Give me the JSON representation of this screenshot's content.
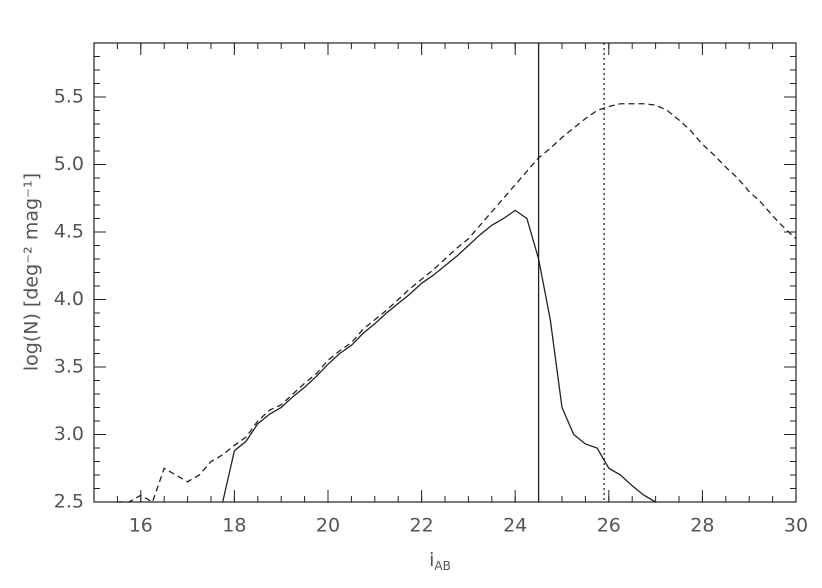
{
  "chart_data": {
    "type": "line",
    "x_label": "i",
    "x_label_subscript": "AB",
    "y_label": "log(N)  [deg⁻² mag⁻¹]",
    "x": [
      15.5,
      15.75,
      16,
      16.25,
      16.5,
      16.75,
      17,
      17.25,
      17.5,
      17.75,
      18,
      18.25,
      18.5,
      18.75,
      19,
      19.25,
      19.5,
      19.75,
      20,
      20.25,
      20.5,
      20.75,
      21,
      21.25,
      21.5,
      21.75,
      22,
      22.25,
      22.5,
      22.75,
      23,
      23.25,
      23.5,
      23.75,
      24,
      24.25,
      24.5,
      24.75,
      25,
      25.25,
      25.5,
      25.75,
      26,
      26.25,
      26.5,
      26.75,
      27,
      27.25,
      27.5,
      27.75,
      28,
      28.25,
      28.5,
      28.75,
      29,
      29.25,
      29.5,
      29.75,
      30
    ],
    "series": [
      {
        "color": "#222",
        "dash": "6,4",
        "values": [
          2.5,
          2.5,
          2.55,
          2.5,
          2.75,
          2.7,
          2.65,
          2.7,
          2.8,
          2.85,
          2.92,
          2.98,
          3.1,
          3.18,
          3.22,
          3.3,
          3.38,
          3.45,
          3.55,
          3.62,
          3.68,
          3.78,
          3.85,
          3.92,
          4.0,
          4.08,
          4.15,
          4.22,
          4.3,
          4.38,
          4.45,
          4.55,
          4.65,
          4.75,
          4.85,
          4.95,
          5.05,
          5.12,
          5.2,
          5.27,
          5.34,
          5.4,
          5.43,
          5.45,
          5.45,
          5.45,
          5.44,
          5.4,
          5.33,
          5.25,
          5.15,
          5.07,
          4.98,
          4.9,
          4.8,
          4.72,
          4.62,
          4.53,
          4.45
        ]
      },
      {
        "color": "#222",
        "dash": "none",
        "values": [
          null,
          null,
          null,
          null,
          null,
          null,
          null,
          null,
          null,
          2.5,
          2.88,
          2.95,
          3.08,
          3.15,
          3.2,
          3.28,
          3.35,
          3.43,
          3.52,
          3.6,
          3.66,
          3.75,
          3.82,
          3.9,
          3.97,
          4.04,
          4.12,
          4.18,
          4.25,
          4.32,
          4.4,
          4.48,
          4.55,
          4.6,
          4.66,
          4.6,
          4.3,
          3.85,
          3.2,
          3.0,
          2.93,
          2.9,
          2.75,
          2.7,
          2.62,
          2.55,
          2.5,
          null,
          null,
          null,
          null,
          null,
          null,
          null,
          null,
          null,
          null,
          null,
          null
        ]
      }
    ],
    "vlines": [
      {
        "x": 24.5,
        "dash": "none"
      },
      {
        "x": 25.9,
        "dash": "2,3"
      }
    ],
    "xlim": [
      15,
      30
    ],
    "ylim": [
      2.5,
      5.9
    ],
    "xticks": [
      16,
      18,
      20,
      22,
      24,
      26,
      28,
      30
    ],
    "yticks": [
      2.5,
      {
        "value": 3,
        "label": "3.0"
      },
      3.5,
      {
        "value": 4,
        "label": "4.0"
      },
      4.5,
      {
        "value": 5,
        "label": "5.0"
      },
      5.5
    ]
  }
}
